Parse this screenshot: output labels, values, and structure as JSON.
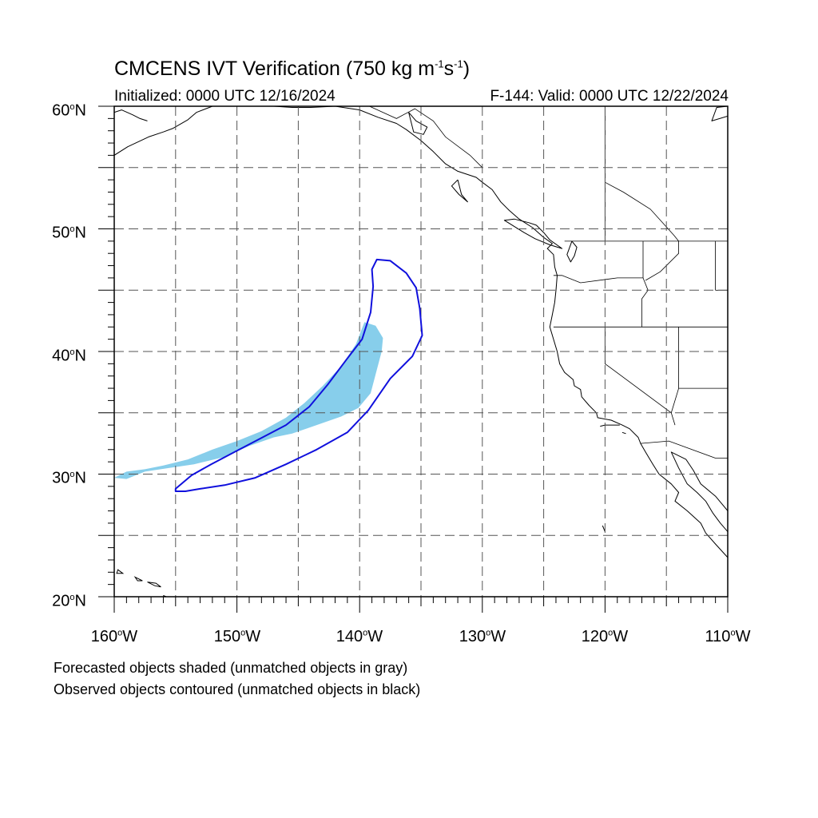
{
  "header": {
    "title_main": "CMCENS IVT Verification (750 kg m",
    "title_exp1": "-1",
    "title_mid": "s",
    "title_exp2": "-1",
    "title_end": ")",
    "initialized": "Initialized: 0000 UTC 12/16/2024",
    "valid": "F-144: Valid: 0000 UTC 12/22/2024"
  },
  "axes": {
    "lat_labels": [
      {
        "num": "60",
        "unit": "N"
      },
      {
        "num": "50",
        "unit": "N"
      },
      {
        "num": "40",
        "unit": "N"
      },
      {
        "num": "30",
        "unit": "N"
      },
      {
        "num": "20",
        "unit": "N"
      }
    ],
    "lon_labels": [
      {
        "num": "160",
        "unit": "W"
      },
      {
        "num": "150",
        "unit": "W"
      },
      {
        "num": "140",
        "unit": "W"
      },
      {
        "num": "130",
        "unit": "W"
      },
      {
        "num": "120",
        "unit": "W"
      },
      {
        "num": "110",
        "unit": "W"
      }
    ],
    "degree_symbol": "o",
    "lat_range": [
      20,
      60
    ],
    "lon_range": [
      -160,
      -110
    ],
    "grid": true
  },
  "legend": {
    "line1": "Forecasted objects shaded (unmatched objects in gray)",
    "line2": "Observed objects contoured (unmatched objects in black)"
  },
  "colors": {
    "forecast_fill": "#87ceeb",
    "observed_contour": "#1010dd",
    "coastline": "#000000",
    "grid": "#555555"
  },
  "forecast_object": {
    "matched": true,
    "outline": [
      [
        -160.0,
        29.7
      ],
      [
        -159.0,
        30.2
      ],
      [
        -157.5,
        30.4
      ],
      [
        -156.0,
        30.7
      ],
      [
        -154.0,
        31.2
      ],
      [
        -152.0,
        32.0
      ],
      [
        -150.0,
        32.7
      ],
      [
        -148.0,
        33.5
      ],
      [
        -146.0,
        34.6
      ],
      [
        -144.5,
        35.8
      ],
      [
        -143.0,
        37.2
      ],
      [
        -141.5,
        38.8
      ],
      [
        -140.3,
        40.6
      ],
      [
        -139.8,
        41.9
      ],
      [
        -139.6,
        42.4
      ],
      [
        -138.7,
        42.1
      ],
      [
        -138.1,
        41.1
      ],
      [
        -138.2,
        40.0
      ],
      [
        -138.6,
        38.5
      ],
      [
        -139.1,
        36.6
      ],
      [
        -140.1,
        35.4
      ],
      [
        -141.5,
        34.7
      ],
      [
        -143.5,
        34.0
      ],
      [
        -145.5,
        33.3
      ],
      [
        -147.0,
        33.0
      ],
      [
        -149.0,
        32.3
      ],
      [
        -151.0,
        31.4
      ],
      [
        -153.5,
        30.8
      ],
      [
        -155.5,
        30.5
      ],
      [
        -157.5,
        30.2
      ],
      [
        -159.0,
        29.6
      ]
    ]
  },
  "observed_object": {
    "matched": true,
    "outline": [
      [
        -155.0,
        28.6
      ],
      [
        -154.2,
        28.6
      ],
      [
        -153.0,
        28.8
      ],
      [
        -151.0,
        29.1
      ],
      [
        -148.5,
        29.7
      ],
      [
        -146.0,
        30.8
      ],
      [
        -143.5,
        32.0
      ],
      [
        -141.0,
        33.4
      ],
      [
        -139.3,
        35.2
      ],
      [
        -137.5,
        37.8
      ],
      [
        -135.7,
        39.6
      ],
      [
        -134.9,
        41.3
      ],
      [
        -135.1,
        43.5
      ],
      [
        -135.4,
        45.2
      ],
      [
        -136.2,
        46.4
      ],
      [
        -137.5,
        47.4
      ],
      [
        -138.6,
        47.5
      ],
      [
        -139.0,
        46.7
      ],
      [
        -138.9,
        45.3
      ],
      [
        -139.1,
        43.2
      ],
      [
        -139.8,
        41.0
      ],
      [
        -141.1,
        39.3
      ],
      [
        -142.6,
        37.3
      ],
      [
        -144.1,
        35.5
      ],
      [
        -146.0,
        34.0
      ],
      [
        -148.1,
        32.9
      ],
      [
        -150.0,
        31.9
      ],
      [
        -152.1,
        30.8
      ],
      [
        -153.7,
        29.9
      ],
      [
        -155.0,
        28.8
      ]
    ]
  },
  "geography": {
    "coastlines": [
      [
        [
          -160.0,
          56.0
        ],
        [
          -158.9,
          56.7
        ],
        [
          -157.2,
          57.5
        ],
        [
          -156.0,
          57.9
        ],
        [
          -155.2,
          58.2
        ],
        [
          -154.0,
          58.9
        ],
        [
          -153.3,
          59.5
        ],
        [
          -152.0,
          60.0
        ]
      ],
      [
        [
          -160.0,
          59.5
        ],
        [
          -159.4,
          59.7
        ],
        [
          -158.5,
          59.3
        ],
        [
          -157.9,
          59.0
        ],
        [
          -157.3,
          58.8
        ]
      ],
      [
        [
          -147.0,
          60.0
        ],
        [
          -145.5,
          59.9
        ],
        [
          -144.0,
          59.9
        ],
        [
          -142.0,
          60.0
        ],
        [
          -140.0,
          59.7
        ],
        [
          -138.5,
          59.1
        ],
        [
          -137.0,
          58.6
        ],
        [
          -136.2,
          58.1
        ],
        [
          -135.0,
          57.2
        ],
        [
          -134.0,
          56.3
        ],
        [
          -133.0,
          55.3
        ],
        [
          -132.0,
          54.7
        ],
        [
          -130.5,
          54.2
        ],
        [
          -130.0,
          53.8
        ],
        [
          -129.2,
          53.2
        ],
        [
          -128.5,
          52.2
        ],
        [
          -127.8,
          51.5
        ],
        [
          -127.0,
          50.8
        ],
        [
          -125.9,
          50.1
        ],
        [
          -125.0,
          49.3
        ],
        [
          -124.3,
          48.8
        ],
        [
          -124.7,
          48.4
        ],
        [
          -124.2,
          47.9
        ],
        [
          -124.1,
          46.9
        ],
        [
          -123.9,
          46.2
        ],
        [
          -124.0,
          45.0
        ],
        [
          -124.1,
          44.0
        ],
        [
          -124.3,
          43.0
        ],
        [
          -124.5,
          42.0
        ],
        [
          -124.2,
          41.0
        ],
        [
          -123.9,
          40.0
        ],
        [
          -123.7,
          39.0
        ],
        [
          -123.3,
          38.3
        ],
        [
          -122.6,
          37.7
        ],
        [
          -122.5,
          37.2
        ],
        [
          -122.0,
          36.9
        ],
        [
          -121.9,
          36.3
        ],
        [
          -121.3,
          35.6
        ],
        [
          -120.7,
          35.0
        ],
        [
          -120.6,
          34.6
        ],
        [
          -119.5,
          34.4
        ],
        [
          -118.6,
          34.0
        ],
        [
          -118.0,
          33.7
        ],
        [
          -117.3,
          33.0
        ],
        [
          -117.1,
          32.5
        ],
        [
          -116.7,
          31.8
        ],
        [
          -116.1,
          30.8
        ],
        [
          -115.6,
          30.0
        ],
        [
          -114.6,
          29.2
        ],
        [
          -114.0,
          28.5
        ],
        [
          -114.3,
          27.8
        ],
        [
          -113.3,
          27.0
        ],
        [
          -112.2,
          26.0
        ],
        [
          -111.8,
          25.2
        ],
        [
          -111.0,
          24.3
        ],
        [
          -110.0,
          23.2
        ]
      ],
      [
        [
          -110.0,
          27.0
        ],
        [
          -111.0,
          28.2
        ],
        [
          -112.2,
          29.2
        ],
        [
          -112.8,
          30.3
        ],
        [
          -113.4,
          31.2
        ],
        [
          -114.6,
          31.8
        ],
        [
          -114.0,
          30.5
        ],
        [
          -113.3,
          29.2
        ],
        [
          -112.5,
          28.5
        ],
        [
          -111.8,
          27.8
        ],
        [
          -111.2,
          26.8
        ],
        [
          -110.6,
          26.0
        ],
        [
          -110.0,
          25.3
        ]
      ],
      [
        [
          -125.6,
          50.3
        ],
        [
          -125.0,
          49.7
        ],
        [
          -124.5,
          49.1
        ],
        [
          -123.5,
          48.4
        ],
        [
          -124.5,
          48.7
        ],
        [
          -125.7,
          49.2
        ],
        [
          -126.6,
          49.7
        ],
        [
          -127.4,
          50.2
        ],
        [
          -128.2,
          50.7
        ],
        [
          -127.4,
          50.8
        ],
        [
          -126.2,
          50.5
        ],
        [
          -125.6,
          50.3
        ]
      ],
      [
        [
          -132.0,
          54.0
        ],
        [
          -132.5,
          53.5
        ],
        [
          -131.9,
          52.8
        ],
        [
          -131.2,
          52.2
        ],
        [
          -131.7,
          52.8
        ],
        [
          -132.0,
          54.0
        ]
      ],
      [
        [
          -136.0,
          59.5
        ],
        [
          -135.4,
          58.8
        ],
        [
          -134.5,
          58.3
        ],
        [
          -134.8,
          57.7
        ],
        [
          -135.6,
          57.9
        ],
        [
          -136.0,
          59.5
        ]
      ],
      [
        [
          -122.7,
          49.0
        ],
        [
          -122.3,
          48.5
        ],
        [
          -122.5,
          47.8
        ],
        [
          -122.8,
          47.3
        ],
        [
          -123.1,
          47.9
        ],
        [
          -122.7,
          49.0
        ]
      ],
      [
        [
          -110.0,
          59.2
        ],
        [
          -111.3,
          58.8
        ],
        [
          -110.9,
          59.9
        ],
        [
          -110.0,
          60.0
        ]
      ],
      [
        [
          -118.8,
          34.0
        ],
        [
          -120.0,
          34.0
        ],
        [
          -120.4,
          33.9
        ]
      ],
      [
        [
          -118.6,
          33.4
        ],
        [
          -118.3,
          33.3
        ]
      ]
    ],
    "islands": [
      [
        [
          -159.7,
          22.2
        ],
        [
          -159.3,
          21.9
        ],
        [
          -159.8,
          21.9
        ]
      ],
      [
        [
          -158.3,
          21.6
        ],
        [
          -157.7,
          21.3
        ],
        [
          -158.1,
          21.3
        ]
      ],
      [
        [
          -157.3,
          21.2
        ],
        [
          -156.7,
          20.9
        ],
        [
          -156.2,
          20.8
        ],
        [
          -156.6,
          21.1
        ]
      ],
      [
        [
          -156.0,
          20.1
        ],
        [
          -155.5,
          19.9
        ],
        [
          -155.0,
          19.6
        ],
        [
          -155.8,
          19.9
        ]
      ],
      [
        [
          -120.2,
          25.8
        ],
        [
          -120.0,
          25.3
        ]
      ]
    ],
    "borders": [
      [
        [
          -123.3,
          49.0
        ],
        [
          -110.0,
          49.0
        ]
      ],
      [
        [
          -124.2,
          46.2
        ],
        [
          -123.5,
          46.2
        ],
        [
          -122.0,
          45.6
        ],
        [
          -119.0,
          46.0
        ],
        [
          -116.9,
          46.0
        ],
        [
          -116.9,
          49.0
        ]
      ],
      [
        [
          -124.2,
          42.0
        ],
        [
          -110.0,
          42.0
        ]
      ],
      [
        [
          -117.0,
          42.0
        ],
        [
          -117.0,
          44.3
        ],
        [
          -116.5,
          45.0
        ],
        [
          -116.9,
          46.0
        ]
      ],
      [
        [
          -120.0,
          42.0
        ],
        [
          -120.0,
          39.0
        ],
        [
          -114.6,
          35.0
        ],
        [
          -114.3,
          34.0
        ]
      ],
      [
        [
          -114.0,
          42.0
        ],
        [
          -114.0,
          37.0
        ],
        [
          -114.6,
          35.0
        ]
      ],
      [
        [
          -114.0,
          37.0
        ],
        [
          -110.0,
          37.0
        ]
      ],
      [
        [
          -111.0,
          45.0
        ],
        [
          -110.0,
          45.0
        ]
      ],
      [
        [
          -117.1,
          32.5
        ],
        [
          -114.8,
          32.7
        ],
        [
          -111.0,
          31.3
        ],
        [
          -110.0,
          31.3
        ]
      ],
      [
        [
          -111.0,
          49.0
        ],
        [
          -111.0,
          45.0
        ]
      ],
      [
        [
          -114.0,
          49.0
        ],
        [
          -114.0,
          48.0
        ],
        [
          -115.5,
          46.5
        ],
        [
          -116.7,
          45.8
        ]
      ],
      [
        [
          -120.0,
          49.0
        ],
        [
          -120.0,
          60.0
        ]
      ],
      [
        [
          -120.0,
          53.8
        ],
        [
          -118.5,
          53.0
        ],
        [
          -116.3,
          51.6
        ],
        [
          -114.4,
          49.5
        ],
        [
          -114.0,
          49.0
        ]
      ],
      [
        [
          -141.0,
          60.0
        ],
        [
          -139.2,
          60.0
        ],
        [
          -137.0,
          59.0
        ],
        [
          -135.5,
          59.8
        ],
        [
          -134.0,
          58.8
        ],
        [
          -133.0,
          57.5
        ],
        [
          -131.0,
          56.0
        ],
        [
          -130.0,
          55.0
        ]
      ]
    ]
  }
}
